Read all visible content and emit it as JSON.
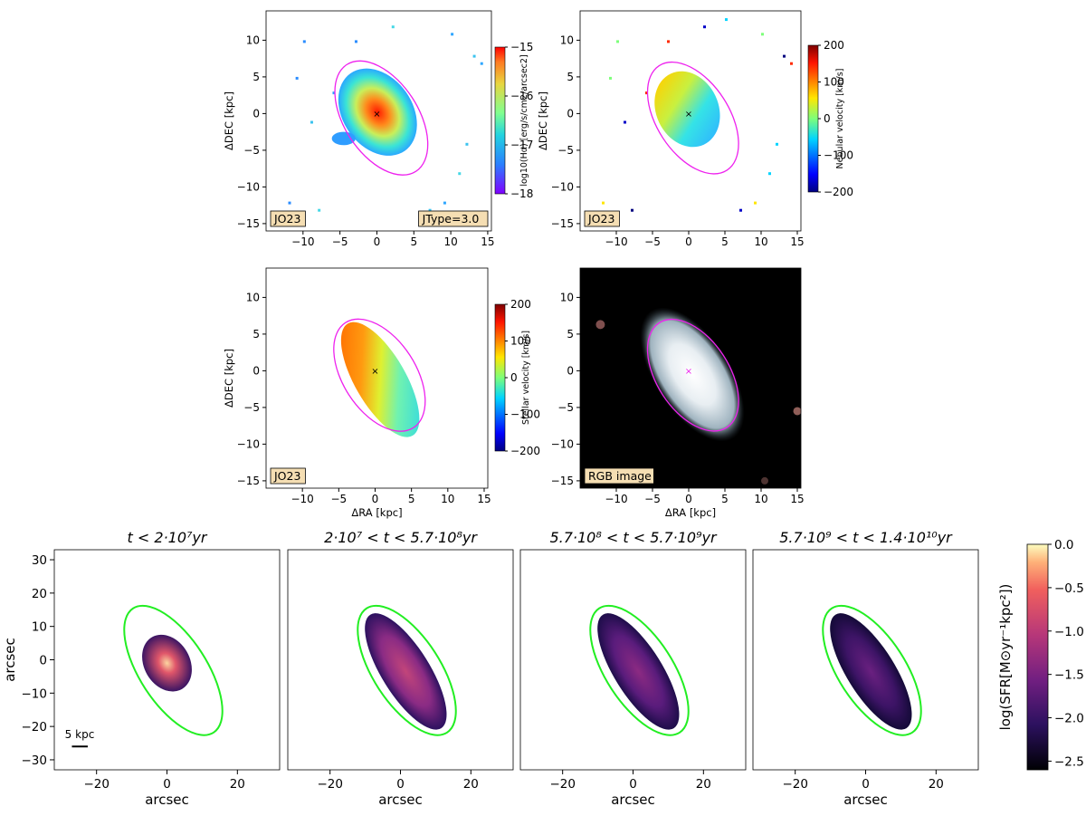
{
  "colors": {
    "contour_top": "#ee22ee",
    "contour_bottom": "#22ee22",
    "tag_box": "#f5deb3",
    "marker_light": "#ee22ee"
  },
  "chart_data": [
    {
      "id": "halpha",
      "type": "heatmap",
      "xlabel": "",
      "ylabel": "ΔDEC [kpc]",
      "xlim": [
        -15,
        15.5
      ],
      "ylim": [
        -16,
        14
      ],
      "xticks": [
        -10,
        -5,
        0,
        5,
        10,
        15
      ],
      "yticks": [
        -15,
        -10,
        -5,
        0,
        5,
        10
      ],
      "colorbar": {
        "label": "log10(Hα) [erg/s/cm2/arcsec2]",
        "ticks": [
          -15,
          -16,
          -17,
          -18
        ],
        "range": [
          -18,
          -15
        ],
        "colormap": "rainbow"
      },
      "tags": [
        "JO23",
        "JType=3.0"
      ],
      "blob": {
        "center_kpc": [
          0,
          0
        ],
        "peak_value": -15.3,
        "edge_value": -17.4
      }
    },
    {
      "id": "nebular",
      "type": "heatmap",
      "xlabel": "",
      "ylabel": "ΔDEC [kpc]",
      "xlim": [
        -15,
        15.5
      ],
      "ylim": [
        -16,
        14
      ],
      "xticks": [
        -10,
        -5,
        0,
        5,
        10,
        15
      ],
      "yticks": [
        -15,
        -10,
        -5,
        0,
        5,
        10
      ],
      "colorbar": {
        "label": "Nebular velocity [km/s]",
        "ticks": [
          200,
          100,
          0,
          -100,
          -200
        ],
        "range": [
          -200,
          200
        ],
        "colormap": "jet"
      },
      "tags": [
        "JO23"
      ],
      "blob": {
        "center_kpc": [
          0,
          0
        ],
        "value_top": 80,
        "value_bottom": -70
      }
    },
    {
      "id": "stellar",
      "type": "heatmap",
      "xlabel": "ΔRA [kpc]",
      "ylabel": "ΔDEC [kpc]",
      "xlim": [
        -15,
        15.5
      ],
      "ylim": [
        -16,
        14
      ],
      "xticks": [
        -10,
        -5,
        0,
        5,
        10,
        15
      ],
      "yticks": [
        -15,
        -10,
        -5,
        0,
        5,
        10
      ],
      "colorbar": {
        "label": "Stellar velocity [km/s]",
        "ticks": [
          200,
          100,
          0,
          -100,
          -200
        ],
        "range": [
          -200,
          200
        ],
        "colormap": "jet"
      },
      "tags": [
        "JO23"
      ],
      "blob": {
        "center_kpc": [
          0,
          0
        ],
        "value_top": 120,
        "value_bottom": -50
      }
    },
    {
      "id": "rgb",
      "type": "heatmap",
      "xlabel": "ΔRA [kpc]",
      "ylabel": "",
      "xlim": [
        -15,
        15.5
      ],
      "ylim": [
        -16,
        14
      ],
      "xticks": [
        -10,
        -5,
        0,
        5,
        10,
        15
      ],
      "yticks": [
        -15,
        -10,
        -5,
        0,
        5,
        10
      ],
      "tags": [
        "RGB image"
      ]
    },
    {
      "id": "sfh",
      "type": "heatmap",
      "xlabel": "arcsec",
      "ylabel": "arcsec",
      "xlim": [
        -32,
        32
      ],
      "ylim": [
        -33,
        33
      ],
      "xticks": [
        -20,
        0,
        20
      ],
      "yticks": [
        -30,
        -20,
        -10,
        0,
        10,
        20,
        30
      ],
      "panels": [
        {
          "title": "t < 2·10⁷yr",
          "level": 1.0
        },
        {
          "title": "2·10⁷ < t < 5.7·10⁸yr",
          "level": 0.55
        },
        {
          "title": "5.7·10⁸ < t < 5.7·10⁹yr",
          "level": 0.35
        },
        {
          "title": "5.7·10⁹ < t < 1.4·10¹⁰yr",
          "level": 0.18
        }
      ],
      "colorbar": {
        "label": "log(SFR[M⊙yr⁻¹kpc²])",
        "ticks": [
          0.0,
          -0.5,
          -1.0,
          -1.5,
          -2.0,
          -2.5
        ],
        "tick_labels": [
          "0.0",
          "−0.5",
          "−1.0",
          "−1.5",
          "−2.0",
          "−2.5"
        ],
        "range": [
          -2.6,
          0.0
        ],
        "colormap": "magma"
      },
      "scalebar_label": "5 kpc"
    }
  ]
}
